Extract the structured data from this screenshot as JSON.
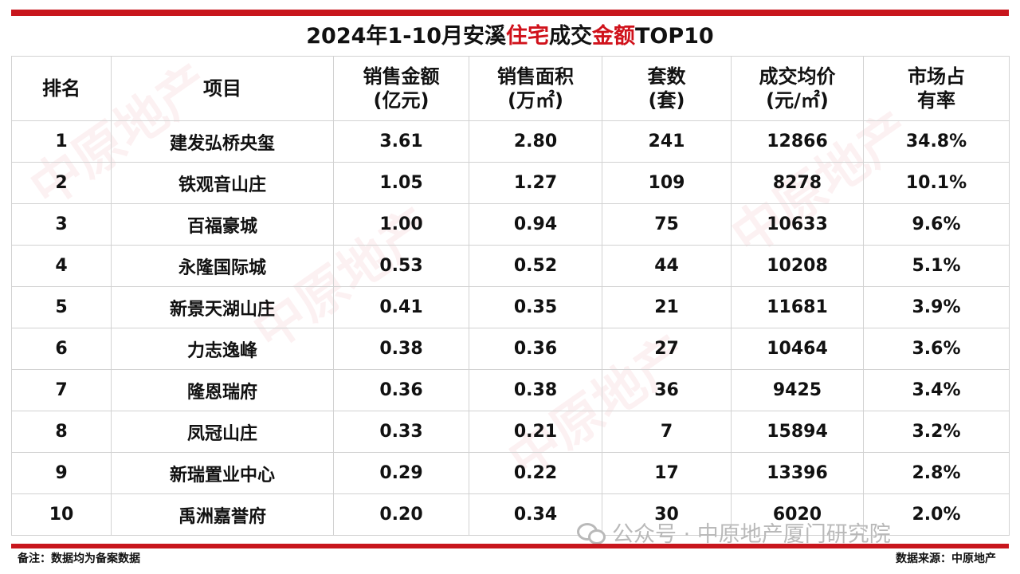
{
  "title": {
    "prefix": "2024年1-10月安溪",
    "highlight1": "住宅",
    "middle": "成交",
    "highlight2": "金额",
    "suffix": "TOP10"
  },
  "colors": {
    "accent_red": "#c8161d",
    "highlight_red": "#d0121b"
  },
  "table": {
    "headers": [
      {
        "line1": "排名",
        "line2": ""
      },
      {
        "line1": "项目",
        "line2": ""
      },
      {
        "line1": "销售金额",
        "line2": "(亿元)"
      },
      {
        "line1": "销售面积",
        "line2": "(万㎡)"
      },
      {
        "line1": "套数",
        "line2": "(套)"
      },
      {
        "line1": "成交均价",
        "line2": "(元/㎡)"
      },
      {
        "line1": "市场占",
        "line2": "有率"
      }
    ],
    "rows": [
      [
        "1",
        "建发弘桥央玺",
        "3.61",
        "2.80",
        "241",
        "12866",
        "34.8%"
      ],
      [
        "2",
        "铁观音山庄",
        "1.05",
        "1.27",
        "109",
        "8278",
        "10.1%"
      ],
      [
        "3",
        "百福豪城",
        "1.00",
        "0.94",
        "75",
        "10633",
        "9.6%"
      ],
      [
        "4",
        "永隆国际城",
        "0.53",
        "0.52",
        "44",
        "10208",
        "5.1%"
      ],
      [
        "5",
        "新景天湖山庄",
        "0.41",
        "0.35",
        "21",
        "11681",
        "3.9%"
      ],
      [
        "6",
        "力志逸峰",
        "0.38",
        "0.36",
        "27",
        "10464",
        "3.6%"
      ],
      [
        "7",
        "隆恩瑞府",
        "0.36",
        "0.38",
        "36",
        "9425",
        "3.4%"
      ],
      [
        "8",
        "凤冠山庄",
        "0.33",
        "0.21",
        "7",
        "15894",
        "3.2%"
      ],
      [
        "9",
        "新瑞置业中心",
        "0.29",
        "0.22",
        "17",
        "13396",
        "2.8%"
      ],
      [
        "10",
        "禹洲嘉誉府",
        "0.20",
        "0.34",
        "30",
        "6020",
        "2.0%"
      ]
    ]
  },
  "footer": {
    "note": "备注：数据均为备案数据",
    "source": "数据来源：中原地产",
    "wechat_watermark": "公众号 · 中原地产厦门研究院"
  },
  "icons": {
    "wechat": "wechat-icon"
  }
}
